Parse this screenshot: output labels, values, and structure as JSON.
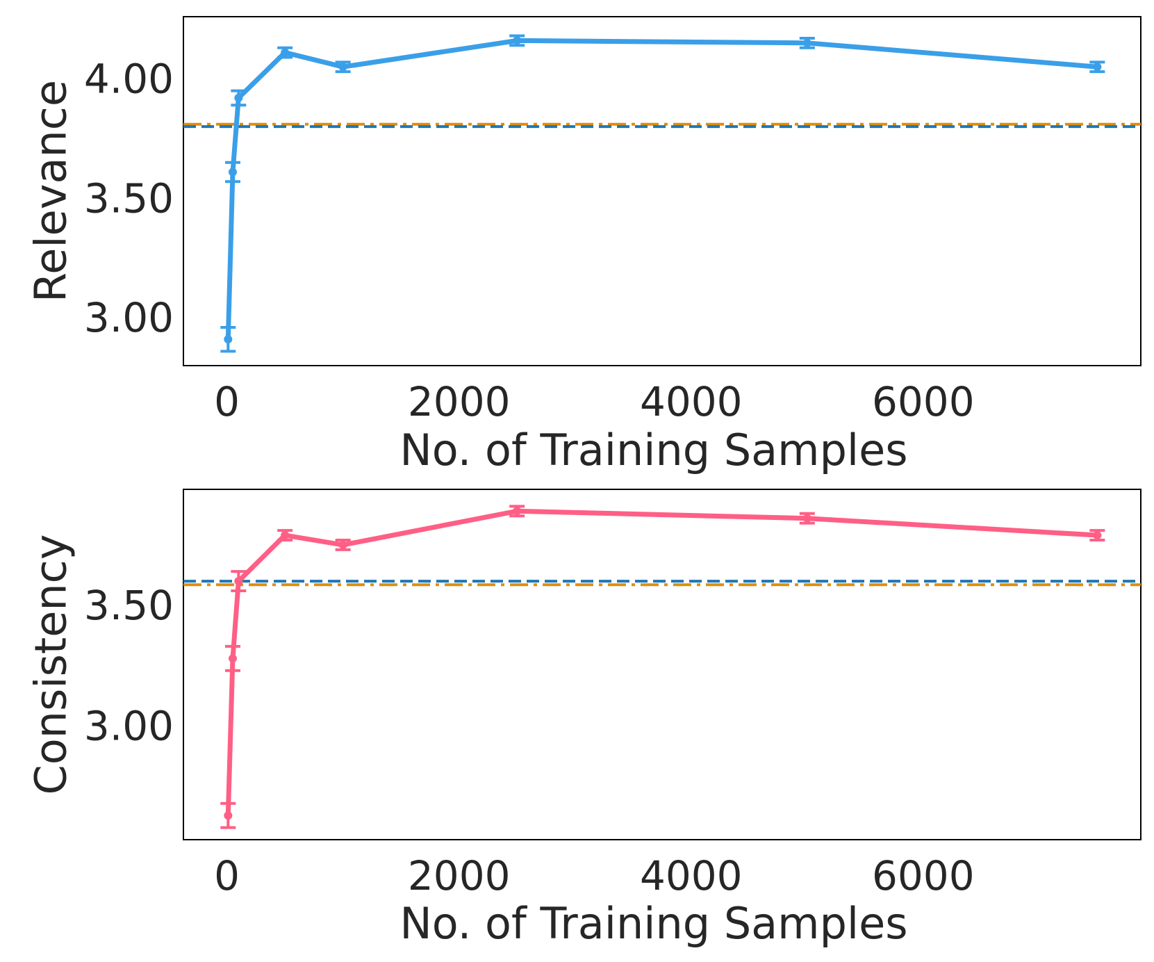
{
  "chart_data": [
    {
      "type": "line",
      "xlabel": "No. of Training Samples",
      "ylabel": "Relevance",
      "xlim": [
        -375,
        7875
      ],
      "ylim": [
        2.8,
        4.26
      ],
      "xticks": [
        0,
        2000,
        4000,
        6000
      ],
      "xtick_labels": [
        "0",
        "2000",
        "4000",
        "6000"
      ],
      "yticks": [
        3.0,
        3.5,
        4.0
      ],
      "ytick_labels": [
        "3.00",
        "3.50",
        "4.00"
      ],
      "grid": false,
      "legend": "none",
      "series": [
        {
          "color": "#3a9fe8",
          "x": [
            10,
            50,
            100,
            500,
            1000,
            2500,
            5000,
            7500
          ],
          "y": [
            2.91,
            3.61,
            3.92,
            4.11,
            4.05,
            4.16,
            4.15,
            4.05
          ],
          "err": [
            0.05,
            0.04,
            0.03,
            0.02,
            0.02,
            0.02,
            0.02,
            0.02
          ]
        }
      ],
      "reference_lines": [
        {
          "style": "dashdot",
          "color": "#e08d0b",
          "y": 3.81
        },
        {
          "style": "dashed",
          "color": "#1f77b4",
          "y": 3.8
        }
      ]
    },
    {
      "type": "line",
      "xlabel": "No. of Training Samples",
      "ylabel": "Consistency",
      "xlim": [
        -375,
        7875
      ],
      "ylim": [
        2.53,
        3.98
      ],
      "xticks": [
        0,
        2000,
        4000,
        6000
      ],
      "xtick_labels": [
        "0",
        "2000",
        "4000",
        "6000"
      ],
      "yticks": [
        3.0,
        3.5
      ],
      "ytick_labels": [
        "3.00",
        "3.50"
      ],
      "grid": false,
      "legend": "none",
      "series": [
        {
          "color": "#ff5f85",
          "x": [
            10,
            50,
            100,
            500,
            1000,
            2500,
            5000,
            7500
          ],
          "y": [
            2.63,
            3.28,
            3.6,
            3.79,
            3.75,
            3.89,
            3.86,
            3.79
          ],
          "err": [
            0.05,
            0.05,
            0.04,
            0.02,
            0.02,
            0.02,
            0.02,
            0.02
          ]
        }
      ],
      "reference_lines": [
        {
          "style": "dashed",
          "color": "#1f77b4",
          "y": 3.6
        },
        {
          "style": "dashdot",
          "color": "#e08d0b",
          "y": 3.585
        }
      ]
    }
  ]
}
